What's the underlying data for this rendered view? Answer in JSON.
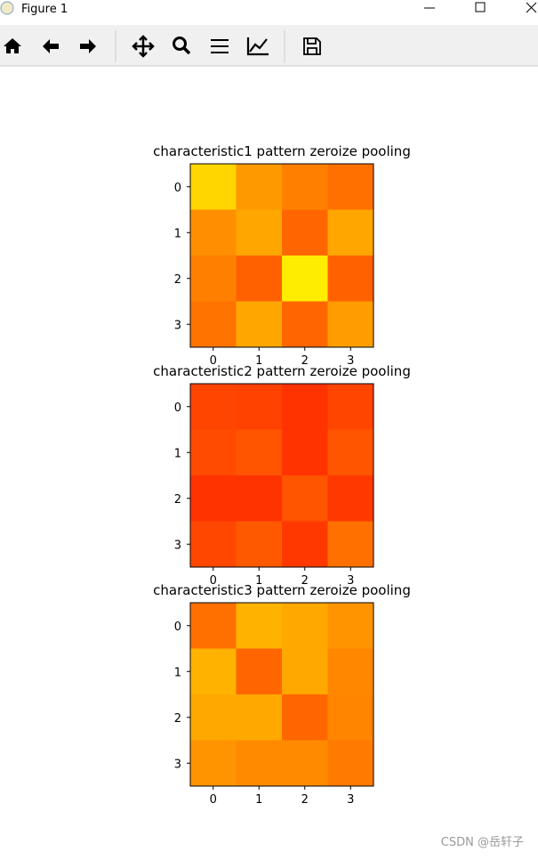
{
  "window": {
    "title": "Figure 1"
  },
  "charts": [
    {
      "type": "heatmap",
      "title": "characteristic1 pattern zeroize pooling",
      "colormap": "autumn",
      "zlim": [
        0,
        1
      ],
      "xlim": [
        -0.5,
        3.5
      ],
      "ylim": [
        3.5,
        -0.5
      ],
      "xticks": [
        0,
        1,
        2,
        3
      ],
      "yticks": [
        0,
        1,
        2,
        3
      ],
      "z": [
        [
          0.84,
          0.6,
          0.5,
          0.44
        ],
        [
          0.56,
          0.65,
          0.4,
          0.65
        ],
        [
          0.5,
          0.38,
          0.93,
          0.38
        ],
        [
          0.45,
          0.65,
          0.4,
          0.61
        ]
      ]
    },
    {
      "type": "heatmap",
      "title": "characteristic2 pattern zeroize pooling",
      "colormap": "autumn",
      "zlim": [
        0,
        1
      ],
      "xlim": [
        -0.5,
        3.5
      ],
      "ylim": [
        3.5,
        -0.5
      ],
      "xticks": [
        0,
        1,
        2,
        3
      ],
      "yticks": [
        0,
        1,
        2,
        3
      ],
      "z": [
        [
          0.27,
          0.26,
          0.2,
          0.27
        ],
        [
          0.29,
          0.33,
          0.2,
          0.33
        ],
        [
          0.2,
          0.2,
          0.33,
          0.22
        ],
        [
          0.28,
          0.35,
          0.22,
          0.44
        ]
      ]
    },
    {
      "type": "heatmap",
      "title": "characteristic3 pattern zeroize pooling",
      "colormap": "autumn",
      "zlim": [
        0,
        1
      ],
      "xlim": [
        -0.5,
        3.5
      ],
      "ylim": [
        3.5,
        -0.5
      ],
      "xticks": [
        0,
        1,
        2,
        3
      ],
      "yticks": [
        0,
        1,
        2,
        3
      ],
      "z": [
        [
          0.44,
          0.7,
          0.66,
          0.58
        ],
        [
          0.7,
          0.4,
          0.66,
          0.53
        ],
        [
          0.66,
          0.66,
          0.4,
          0.52
        ],
        [
          0.58,
          0.54,
          0.54,
          0.48
        ]
      ]
    }
  ],
  "watermark": "CSDN @岳轩子"
}
